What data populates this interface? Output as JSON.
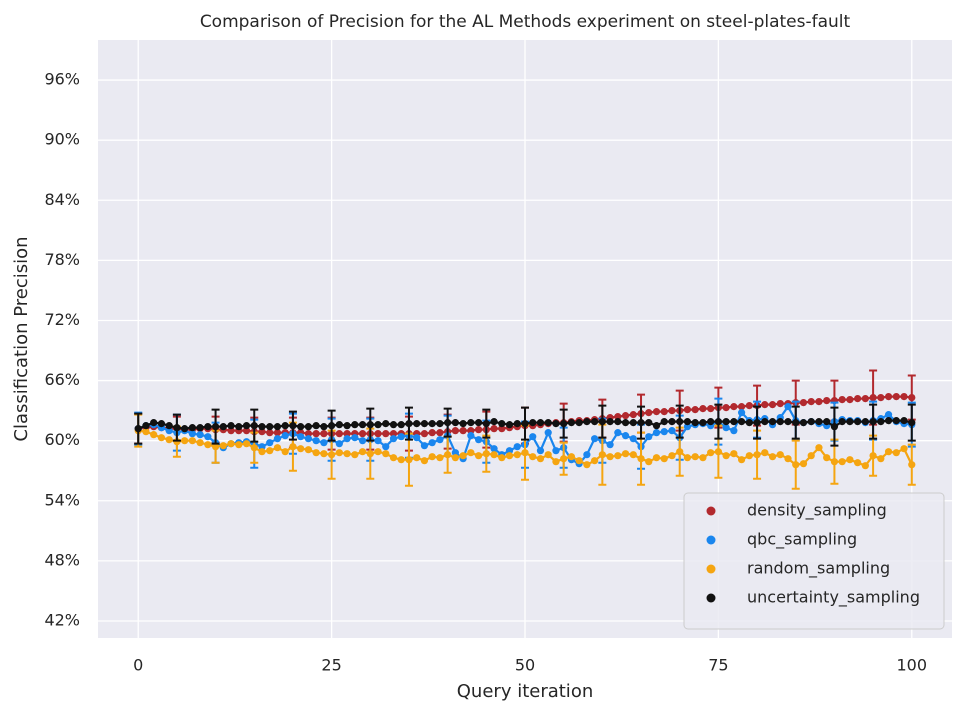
{
  "chart_data": {
    "type": "line",
    "title": "Comparison of Precision for the AL Methods experiment on steel-plates-fault",
    "xlabel": "Query iteration",
    "ylabel": "Classification Precision",
    "x": [
      0,
      1,
      2,
      3,
      4,
      5,
      6,
      7,
      8,
      9,
      10,
      11,
      12,
      13,
      14,
      15,
      16,
      17,
      18,
      19,
      20,
      21,
      22,
      23,
      24,
      25,
      26,
      27,
      28,
      29,
      30,
      31,
      32,
      33,
      34,
      35,
      36,
      37,
      38,
      39,
      40,
      41,
      42,
      43,
      44,
      45,
      46,
      47,
      48,
      49,
      50,
      51,
      52,
      53,
      54,
      55,
      56,
      57,
      58,
      59,
      60,
      61,
      62,
      63,
      64,
      65,
      66,
      67,
      68,
      69,
      70,
      71,
      72,
      73,
      74,
      75,
      76,
      77,
      78,
      79,
      80,
      81,
      82,
      83,
      84,
      85,
      86,
      87,
      88,
      89,
      90,
      91,
      92,
      93,
      94,
      95,
      96,
      97,
      98,
      99,
      100
    ],
    "xlim": [
      -5.2,
      105.2
    ],
    "xticks": [
      0,
      25,
      50,
      75,
      100
    ],
    "ylim": [
      40.3,
      100
    ],
    "yticks": [
      {
        "value": 42,
        "label": "42%"
      },
      {
        "value": 48,
        "label": "48%"
      },
      {
        "value": 54,
        "label": "54%"
      },
      {
        "value": 60,
        "label": "60%"
      },
      {
        "value": 66,
        "label": "66%"
      },
      {
        "value": 72,
        "label": "72%"
      },
      {
        "value": 78,
        "label": "78%"
      },
      {
        "value": 84,
        "label": "84%"
      },
      {
        "value": 90,
        "label": "90%"
      },
      {
        "value": 96,
        "label": "96%"
      }
    ],
    "grid": true,
    "legend": "lower right",
    "series": [
      {
        "name": "density_sampling",
        "color": "#b2292e",
        "values": [
          61.2,
          61.3,
          61.4,
          61.3,
          61.2,
          61.2,
          61.1,
          61.1,
          61.2,
          61.2,
          61.1,
          61.1,
          61.0,
          61.0,
          61.0,
          60.9,
          60.9,
          60.8,
          60.8,
          60.8,
          60.8,
          60.8,
          60.7,
          60.7,
          60.7,
          60.7,
          60.7,
          60.7,
          60.7,
          60.7,
          60.7,
          60.7,
          60.7,
          60.7,
          60.7,
          60.7,
          60.7,
          60.7,
          60.8,
          60.8,
          60.9,
          61.0,
          61.0,
          61.0,
          61.1,
          61.1,
          61.2,
          61.2,
          61.3,
          61.4,
          61.5,
          61.5,
          61.6,
          61.7,
          61.8,
          61.8,
          61.9,
          62.0,
          62.0,
          62.1,
          62.2,
          62.3,
          62.4,
          62.5,
          62.6,
          62.7,
          62.8,
          62.9,
          62.9,
          63.0,
          63.0,
          63.1,
          63.1,
          63.2,
          63.2,
          63.3,
          63.3,
          63.4,
          63.4,
          63.5,
          63.5,
          63.6,
          63.6,
          63.7,
          63.7,
          63.8,
          63.8,
          63.9,
          63.9,
          64.0,
          64.0,
          64.1,
          64.1,
          64.2,
          64.2,
          64.3,
          64.3,
          64.4,
          64.4,
          64.4,
          64.3
        ],
        "errors": [
          1.5,
          null,
          null,
          null,
          null,
          1.2,
          null,
          null,
          null,
          null,
          1.3,
          null,
          null,
          null,
          null,
          1.4,
          null,
          null,
          null,
          null,
          1.5,
          null,
          null,
          null,
          null,
          1.6,
          null,
          null,
          null,
          null,
          1.6,
          null,
          null,
          null,
          null,
          1.7,
          null,
          null,
          null,
          null,
          1.7,
          null,
          null,
          null,
          null,
          1.8,
          null,
          null,
          null,
          null,
          1.8,
          null,
          null,
          null,
          null,
          1.9,
          null,
          null,
          null,
          null,
          1.9,
          null,
          null,
          null,
          null,
          1.9,
          null,
          null,
          null,
          null,
          2.0,
          null,
          null,
          null,
          null,
          2.0,
          null,
          null,
          null,
          null,
          2.0,
          null,
          null,
          null,
          null,
          2.2,
          null,
          null,
          null,
          null,
          2.0,
          null,
          null,
          null,
          null,
          2.7,
          null,
          null,
          null,
          null,
          2.2
        ]
      },
      {
        "name": "qbc_sampling",
        "color": "#1a86ee",
        "values": [
          61.2,
          61.5,
          61.6,
          61.3,
          61.0,
          60.8,
          61.0,
          60.7,
          60.6,
          60.4,
          59.8,
          59.3,
          59.7,
          59.8,
          59.9,
          59.7,
          59.4,
          59.8,
          60.2,
          60.5,
          60.7,
          60.4,
          60.2,
          60.0,
          59.8,
          60.1,
          59.7,
          60.2,
          60.3,
          60.0,
          60.1,
          60.0,
          59.4,
          60.2,
          60.4,
          60.5,
          60.3,
          59.5,
          59.8,
          60.1,
          60.5,
          58.8,
          58.2,
          60.5,
          60.1,
          59.9,
          59.2,
          58.6,
          59.0,
          59.4,
          59.6,
          60.4,
          59.0,
          60.8,
          59.0,
          59.3,
          58.1,
          57.7,
          58.6,
          60.2,
          60.0,
          59.6,
          60.8,
          60.5,
          60.2,
          59.4,
          60.4,
          60.8,
          60.9,
          61.0,
          60.3,
          61.4,
          61.6,
          61.7,
          61.5,
          61.9,
          61.3,
          61.0,
          62.8,
          62.0,
          62.1,
          62.2,
          61.6,
          62.3,
          63.4,
          62.0,
          61.8,
          61.9,
          61.7,
          61.5,
          61.9,
          62.1,
          62.0,
          62.0,
          61.8,
          62.0,
          62.2,
          62.6,
          61.9,
          61.7,
          61.6
        ],
        "errors": [
          1.6,
          null,
          null,
          null,
          null,
          1.8,
          null,
          null,
          null,
          null,
          2.0,
          null,
          null,
          null,
          null,
          2.4,
          null,
          null,
          null,
          null,
          2.0,
          null,
          null,
          null,
          null,
          2.1,
          null,
          null,
          null,
          null,
          2.1,
          null,
          null,
          null,
          null,
          2.2,
          null,
          null,
          null,
          null,
          2.0,
          null,
          null,
          null,
          null,
          2.1,
          null,
          null,
          null,
          null,
          2.3,
          null,
          null,
          null,
          null,
          2.0,
          null,
          null,
          null,
          null,
          2.2,
          null,
          null,
          null,
          null,
          2.2,
          null,
          null,
          null,
          null,
          2.2,
          null,
          null,
          null,
          null,
          2.3,
          null,
          null,
          null,
          null,
          1.8,
          null,
          null,
          null,
          null,
          1.9,
          null,
          null,
          null,
          null,
          1.9,
          null,
          null,
          null,
          null,
          1.9,
          null,
          null,
          null,
          null,
          2.2
        ]
      },
      {
        "name": "random_sampling",
        "color": "#f5a511",
        "values": [
          61.0,
          60.9,
          60.6,
          60.3,
          60.1,
          59.9,
          60.0,
          60.0,
          59.8,
          59.6,
          59.4,
          59.5,
          59.7,
          59.6,
          59.7,
          59.3,
          58.9,
          59.0,
          59.3,
          58.9,
          59.4,
          59.2,
          59.1,
          58.8,
          58.7,
          58.6,
          58.8,
          58.7,
          58.6,
          58.9,
          58.7,
          58.9,
          58.7,
          58.3,
          58.1,
          58.1,
          58.3,
          58.0,
          58.4,
          58.3,
          58.6,
          58.3,
          58.5,
          58.8,
          58.5,
          58.7,
          58.6,
          58.3,
          58.5,
          58.6,
          58.8,
          58.4,
          58.2,
          58.6,
          57.9,
          58.2,
          58.4,
          58.0,
          57.6,
          58.0,
          58.6,
          58.4,
          58.5,
          58.7,
          58.6,
          58.2,
          57.9,
          58.3,
          58.2,
          58.5,
          58.9,
          58.3,
          58.4,
          58.3,
          58.8,
          58.9,
          58.5,
          58.7,
          58.1,
          58.5,
          58.6,
          58.8,
          58.4,
          58.6,
          58.2,
          57.6,
          57.7,
          58.5,
          59.3,
          58.3,
          57.9,
          57.9,
          58.1,
          57.8,
          57.5,
          58.5,
          58.2,
          58.9,
          58.8,
          59.2,
          57.6
        ],
        "errors": [
          1.6,
          null,
          null,
          null,
          null,
          1.5,
          null,
          null,
          null,
          null,
          1.6,
          null,
          null,
          null,
          null,
          1.5,
          null,
          null,
          null,
          null,
          2.4,
          null,
          null,
          null,
          null,
          2.4,
          null,
          null,
          null,
          null,
          2.5,
          null,
          null,
          null,
          null,
          2.6,
          null,
          null,
          null,
          null,
          1.8,
          null,
          null,
          null,
          null,
          1.8,
          null,
          null,
          null,
          null,
          2.7,
          null,
          null,
          null,
          null,
          1.6,
          null,
          null,
          null,
          null,
          3.0,
          null,
          null,
          null,
          null,
          2.6,
          null,
          null,
          null,
          null,
          2.4,
          null,
          null,
          null,
          null,
          2.6,
          null,
          null,
          null,
          null,
          2.4,
          null,
          null,
          null,
          null,
          2.4,
          null,
          null,
          null,
          null,
          2.2,
          null,
          null,
          null,
          null,
          2.0,
          null,
          null,
          null,
          null,
          2.0
        ]
      },
      {
        "name": "uncertainty_sampling",
        "color": "#111111",
        "values": [
          61.2,
          61.5,
          61.8,
          61.7,
          61.5,
          61.3,
          61.2,
          61.3,
          61.3,
          61.4,
          61.4,
          61.4,
          61.5,
          61.4,
          61.5,
          61.5,
          61.4,
          61.4,
          61.4,
          61.5,
          61.5,
          61.4,
          61.4,
          61.5,
          61.4,
          61.5,
          61.6,
          61.5,
          61.6,
          61.6,
          61.6,
          61.6,
          61.7,
          61.6,
          61.6,
          61.7,
          61.7,
          61.7,
          61.7,
          61.7,
          61.8,
          61.8,
          61.7,
          61.8,
          61.8,
          61.7,
          61.9,
          61.7,
          61.6,
          61.7,
          61.7,
          61.8,
          61.8,
          61.8,
          61.7,
          61.7,
          61.8,
          61.8,
          61.9,
          61.9,
          61.9,
          61.9,
          61.9,
          61.8,
          61.8,
          61.8,
          61.8,
          61.5,
          61.9,
          61.9,
          61.9,
          61.9,
          61.8,
          61.8,
          61.9,
          61.9,
          61.9,
          61.9,
          61.9,
          61.8,
          61.8,
          61.9,
          61.9,
          61.9,
          61.9,
          61.8,
          61.8,
          61.9,
          61.9,
          61.9,
          61.4,
          61.9,
          61.9,
          61.9,
          61.9,
          61.9,
          61.9,
          62.0,
          62.0,
          62.0,
          61.8
        ],
        "errors": [
          1.5,
          null,
          null,
          null,
          null,
          1.3,
          null,
          null,
          null,
          null,
          1.7,
          null,
          null,
          null,
          null,
          1.6,
          null,
          null,
          null,
          null,
          1.4,
          null,
          null,
          null,
          null,
          1.5,
          null,
          null,
          null,
          null,
          1.6,
          null,
          null,
          null,
          null,
          1.6,
          null,
          null,
          null,
          null,
          1.4,
          null,
          null,
          null,
          null,
          1.4,
          null,
          null,
          null,
          null,
          1.6,
          null,
          null,
          null,
          null,
          1.4,
          null,
          null,
          null,
          null,
          1.6,
          null,
          null,
          null,
          null,
          1.6,
          null,
          null,
          null,
          null,
          1.6,
          null,
          null,
          null,
          null,
          1.7,
          null,
          null,
          null,
          null,
          1.6,
          null,
          null,
          null,
          null,
          1.6,
          null,
          null,
          null,
          null,
          1.9,
          null,
          null,
          null,
          null,
          1.7,
          null,
          null,
          null,
          null,
          1.8
        ]
      }
    ]
  }
}
